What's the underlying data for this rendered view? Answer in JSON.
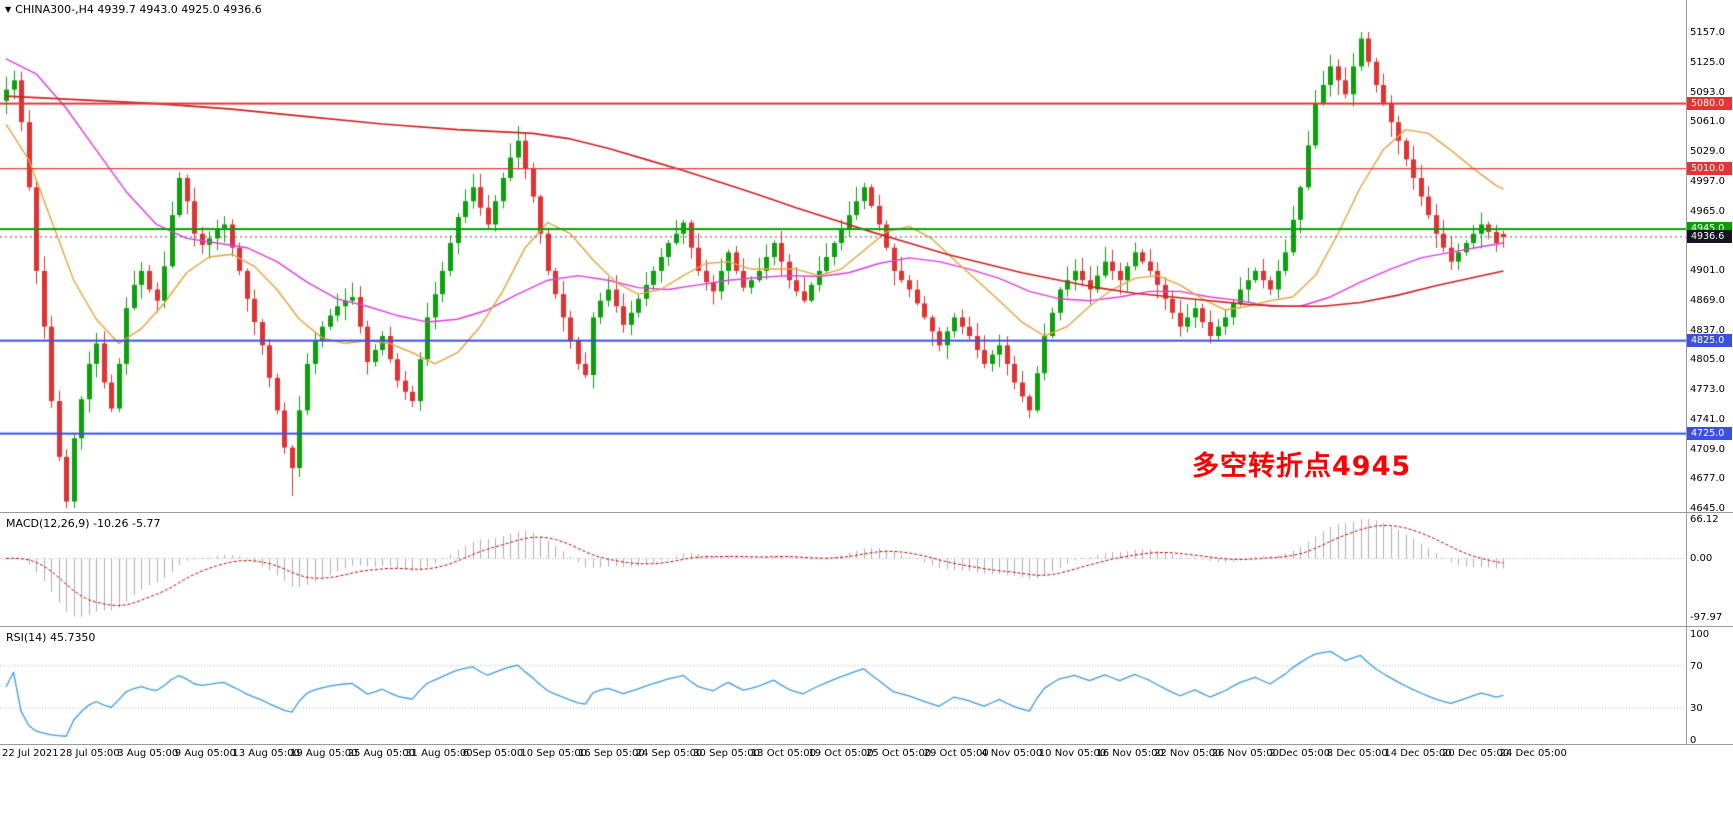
{
  "window": {
    "marker": "▼",
    "title_line": "CHINA300-,H4 4939.7 4943.0 4925.0 4936.6"
  },
  "colors": {
    "background": "#FFFFFF",
    "bull": "#0CA10C",
    "bear": "#E03232",
    "ma_fast_orange": "#E8A33D",
    "ma_mid_magenta": "#E23CE2",
    "ma_slow_red": "#CC2222",
    "level_red": "#E43333",
    "level_green": "#00A000",
    "level_blue": "#3C50E0",
    "price_tag_bg": "#15151F",
    "macd_histogram": "#B0B0B0",
    "macd_signal": "#CC0000",
    "rsi_line": "#3E9BE9",
    "grid_dotted": "#B8B8B8",
    "separator": "#9A9A9A",
    "annotation_red": "#FF0000"
  },
  "chart_data": {
    "type": "candlestick",
    "symbol": "CHINA300-",
    "timeframe": "H4",
    "last_ohlc": {
      "open": 4939.7,
      "high": 4943.0,
      "low": 4925.0,
      "close": 4936.6
    },
    "main": {
      "scale_top": 5157.0,
      "scale_bottom": 4645.0,
      "y_ticks": [
        "5157.0",
        "5125.0",
        "5093.0",
        "5061.0",
        "5029.0",
        "4997.0",
        "4965.0",
        "4933.0",
        "4901.0",
        "4869.0",
        "4837.0",
        "4805.0",
        "4773.0",
        "4741.0",
        "4709.0",
        "4677.0",
        "4645.0"
      ],
      "noise_seed": 7,
      "closes": [
        5095,
        5105,
        5060,
        4990,
        4900,
        4840,
        4760,
        4700,
        4652,
        4720,
        4762,
        4800,
        4822,
        4780,
        4752,
        4800,
        4860,
        4885,
        4900,
        4880,
        4868,
        4905,
        4960,
        5000,
        4975,
        4940,
        4928,
        4935,
        4945,
        4950,
        4925,
        4900,
        4870,
        4845,
        4820,
        4785,
        4750,
        4710,
        4688,
        4750,
        4800,
        4825,
        4840,
        4852,
        4862,
        4868,
        4872,
        4840,
        4802,
        4815,
        4830,
        4805,
        4782,
        4770,
        4760,
        4805,
        4850,
        4875,
        4900,
        4930,
        4958,
        4975,
        4990,
        4968,
        4950,
        4975,
        5000,
        5022,
        5040,
        5010,
        4980,
        4940,
        4900,
        4875,
        4850,
        4825,
        4800,
        4788,
        4850,
        4868,
        4880,
        4862,
        4842,
        4855,
        4870,
        4885,
        4900,
        4915,
        4930,
        4940,
        4952,
        4925,
        4900,
        4888,
        4878,
        4900,
        4920,
        4900,
        4882,
        4890,
        4900,
        4915,
        4930,
        4910,
        4890,
        4878,
        4868,
        4885,
        4900,
        4915,
        4930,
        4945,
        4960,
        4975,
        4990,
        4970,
        4950,
        4925,
        4900,
        4890,
        4880,
        4865,
        4850,
        4835,
        4820,
        4835,
        4850,
        4840,
        4830,
        4815,
        4800,
        4810,
        4820,
        4800,
        4780,
        4765,
        4750,
        4790,
        4830,
        4855,
        4880,
        4890,
        4900,
        4890,
        4880,
        4895,
        4910,
        4900,
        4890,
        4905,
        4920,
        4910,
        4900,
        4885,
        4870,
        4855,
        4840,
        4850,
        4860,
        4845,
        4830,
        4840,
        4850,
        4865,
        4880,
        4890,
        4900,
        4890,
        4880,
        4900,
        4920,
        4955,
        4990,
        5035,
        5080,
        5100,
        5120,
        5105,
        5090,
        5120,
        5150,
        5125,
        5100,
        5080,
        5060,
        5040,
        5020,
        5000,
        4980,
        4960,
        4940,
        4925,
        4910,
        4920,
        4930,
        4940,
        4950,
        4942,
        4930,
        4936.6
      ],
      "overrides": [
        [
          8,
          null,
          null,
          4645,
          null
        ],
        [
          38,
          null,
          null,
          4658,
          null
        ],
        [
          180,
          null,
          5157,
          null,
          null
        ],
        [
          199,
          4939.7,
          4943.0,
          4925.0,
          4936.6
        ]
      ],
      "h_lines": [
        {
          "value": 5080.0,
          "label": "5080.0",
          "color_key": "level_red",
          "width": 2
        },
        {
          "value": 5010.0,
          "label": "5010.0",
          "color_key": "level_red",
          "width": 1.2
        },
        {
          "value": 4945.0,
          "label": "4945.0",
          "color_key": "level_green",
          "width": 2
        },
        {
          "value": 4825.0,
          "label": "4825.0",
          "color_key": "level_blue",
          "width": 2
        },
        {
          "value": 4725.0,
          "label": "4725.0",
          "color_key": "level_blue",
          "width": 2
        }
      ],
      "current_price": {
        "value": 4936.6,
        "label": "4936.6"
      },
      "moving_averages": [
        {
          "name": "ma-mid-magenta",
          "color_key": "ma_mid_magenta",
          "width": 1.4,
          "anchors": [
            [
              0,
              5128
            ],
            [
              4,
              5112
            ],
            [
              8,
              5075
            ],
            [
              12,
              5030
            ],
            [
              16,
              4985
            ],
            [
              20,
              4950
            ],
            [
              24,
              4935
            ],
            [
              28,
              4930
            ],
            [
              32,
              4925
            ],
            [
              36,
              4910
            ],
            [
              40,
              4888
            ],
            [
              44,
              4870
            ],
            [
              48,
              4862
            ],
            [
              52,
              4852
            ],
            [
              56,
              4845
            ],
            [
              60,
              4848
            ],
            [
              64,
              4858
            ],
            [
              68,
              4875
            ],
            [
              72,
              4890
            ],
            [
              76,
              4895
            ],
            [
              80,
              4890
            ],
            [
              84,
              4882
            ],
            [
              88,
              4880
            ],
            [
              92,
              4885
            ],
            [
              96,
              4890
            ],
            [
              100,
              4893
            ],
            [
              104,
              4895
            ],
            [
              108,
              4894
            ],
            [
              112,
              4898
            ],
            [
              116,
              4908
            ],
            [
              120,
              4914
            ],
            [
              124,
              4910
            ],
            [
              128,
              4902
            ],
            [
              132,
              4892
            ],
            [
              136,
              4878
            ],
            [
              140,
              4870
            ],
            [
              144,
              4868
            ],
            [
              148,
              4872
            ],
            [
              152,
              4878
            ],
            [
              156,
              4878
            ],
            [
              160,
              4872
            ],
            [
              164,
              4868
            ],
            [
              168,
              4862
            ],
            [
              172,
              4862
            ],
            [
              176,
              4872
            ],
            [
              180,
              4888
            ],
            [
              184,
              4902
            ],
            [
              188,
              4914
            ],
            [
              192,
              4920
            ],
            [
              196,
              4926
            ],
            [
              199,
              4930
            ]
          ]
        },
        {
          "name": "ma-fast-orange",
          "color_key": "ma_fast_orange",
          "width": 1.4,
          "anchors": [
            [
              0,
              5058
            ],
            [
              3,
              5020
            ],
            [
              6,
              4955
            ],
            [
              9,
              4890
            ],
            [
              12,
              4848
            ],
            [
              15,
              4822
            ],
            [
              18,
              4838
            ],
            [
              21,
              4865
            ],
            [
              24,
              4898
            ],
            [
              27,
              4915
            ],
            [
              30,
              4918
            ],
            [
              33,
              4905
            ],
            [
              36,
              4880
            ],
            [
              39,
              4848
            ],
            [
              42,
              4828
            ],
            [
              45,
              4822
            ],
            [
              48,
              4825
            ],
            [
              51,
              4822
            ],
            [
              54,
              4812
            ],
            [
              57,
              4800
            ],
            [
              60,
              4812
            ],
            [
              63,
              4840
            ],
            [
              66,
              4878
            ],
            [
              69,
              4925
            ],
            [
              72,
              4952
            ],
            [
              75,
              4940
            ],
            [
              78,
              4912
            ],
            [
              81,
              4888
            ],
            [
              84,
              4875
            ],
            [
              87,
              4880
            ],
            [
              90,
              4895
            ],
            [
              93,
              4908
            ],
            [
              96,
              4910
            ],
            [
              99,
              4902
            ],
            [
              102,
              4902
            ],
            [
              105,
              4902
            ],
            [
              108,
              4895
            ],
            [
              111,
              4902
            ],
            [
              114,
              4922
            ],
            [
              117,
              4942
            ],
            [
              120,
              4948
            ],
            [
              123,
              4935
            ],
            [
              126,
              4912
            ],
            [
              129,
              4890
            ],
            [
              132,
              4868
            ],
            [
              135,
              4845
            ],
            [
              138,
              4830
            ],
            [
              141,
              4840
            ],
            [
              144,
              4862
            ],
            [
              147,
              4880
            ],
            [
              150,
              4892
            ],
            [
              153,
              4895
            ],
            [
              156,
              4885
            ],
            [
              159,
              4870
            ],
            [
              162,
              4858
            ],
            [
              165,
              4862
            ],
            [
              168,
              4868
            ],
            [
              171,
              4872
            ],
            [
              174,
              4895
            ],
            [
              177,
              4940
            ],
            [
              180,
              4990
            ],
            [
              183,
              5030
            ],
            [
              186,
              5052
            ],
            [
              189,
              5048
            ],
            [
              192,
              5030
            ],
            [
              195,
              5010
            ],
            [
              198,
              4992
            ],
            [
              199,
              4988
            ]
          ]
        },
        {
          "name": "ma-slow-red",
          "color_key": "ma_slow_red",
          "width": 1.6,
          "anchors": [
            [
              0,
              5088
            ],
            [
              10,
              5084
            ],
            [
              20,
              5080
            ],
            [
              30,
              5074
            ],
            [
              40,
              5066
            ],
            [
              50,
              5058
            ],
            [
              60,
              5052
            ],
            [
              70,
              5048
            ],
            [
              75,
              5042
            ],
            [
              80,
              5032
            ],
            [
              85,
              5020
            ],
            [
              90,
              5008
            ],
            [
              95,
              4995
            ],
            [
              100,
              4982
            ],
            [
              105,
              4968
            ],
            [
              110,
              4955
            ],
            [
              115,
              4942
            ],
            [
              120,
              4930
            ],
            [
              125,
              4918
            ],
            [
              130,
              4908
            ],
            [
              135,
              4898
            ],
            [
              140,
              4890
            ],
            [
              145,
              4882
            ],
            [
              150,
              4876
            ],
            [
              155,
              4872
            ],
            [
              160,
              4868
            ],
            [
              165,
              4864
            ],
            [
              170,
              4862
            ],
            [
              175,
              4862
            ],
            [
              180,
              4866
            ],
            [
              185,
              4874
            ],
            [
              190,
              4884
            ],
            [
              195,
              4893
            ],
            [
              199,
              4900
            ]
          ]
        }
      ],
      "annotation": {
        "text": "多空转折点4945"
      }
    },
    "macd": {
      "label": "MACD(12,26,9) -10.26 -5.77",
      "fast": 12,
      "slow": 26,
      "signal": 9,
      "value": -10.26,
      "signal_value": -5.77,
      "scale_top": 66.12,
      "scale_bottom": -97.97,
      "y_ticks": [
        "66.12",
        "0.00",
        "-97.97"
      ]
    },
    "rsi": {
      "label": "RSI(14) 45.7350",
      "period": 14,
      "value": 45.735,
      "levels": [
        70,
        30
      ],
      "scale_top": 100,
      "scale_bottom": 0,
      "y_ticks": [
        "100",
        "70",
        "30",
        "0"
      ]
    },
    "x_labels": [
      "22 Jul 2021",
      "28 Jul 05:00",
      "3 Aug 05:00",
      "9 Aug 05:00",
      "13 Aug 05:00",
      "19 Aug 05:00",
      "25 Aug 05:00",
      "31 Aug 05:00",
      "6 Sep 05:00",
      "10 Sep 05:00",
      "16 Sep 05:00",
      "24 Sep 05:00",
      "30 Sep 05:00",
      "13 Oct 05:00",
      "19 Oct 05:00",
      "25 Oct 05:00",
      "29 Oct 05:00",
      "4 Nov 05:00",
      "10 Nov 05:00",
      "16 Nov 05:00",
      "22 Nov 05:00",
      "26 Nov 05:00",
      "2 Dec 05:00",
      "8 Dec 05:00",
      "14 Dec 05:00",
      "20 Dec 05:00",
      "24 Dec 05:00"
    ]
  }
}
